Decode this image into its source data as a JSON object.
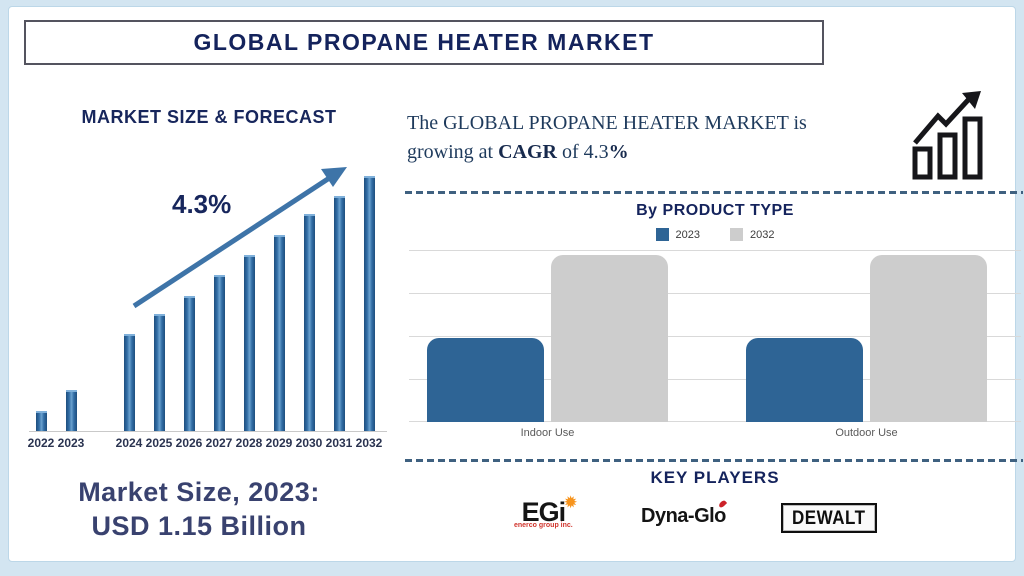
{
  "header": {
    "title": "GLOBAL PROPANE HEATER MARKET"
  },
  "summary": {
    "line1": "The GLOBAL PROPANE HEATER MARKET is",
    "l2_pre": "growing at ",
    "l2_bold1": "CAGR",
    "l2_mid": " of 4.3",
    "l2_bold2": "%"
  },
  "chart_data": [
    {
      "type": "bar",
      "title": "MARKET SIZE & FORECAST",
      "categories": [
        "2022",
        "2023",
        "2024",
        "2025",
        "2026",
        "2027",
        "2028",
        "2029",
        "2030",
        "2031",
        "2032"
      ],
      "values": [
        8,
        16,
        38,
        46,
        53,
        61,
        69,
        77,
        85,
        92,
        100
      ],
      "value_scale": "relative bar height, no numeric axis shown; 2023 known = USD 1.15 Billion",
      "cagr_label": "4.3%",
      "bar_color": "#2e6a9e",
      "xlabel": "",
      "ylabel": "",
      "grid": false,
      "legend_position": "none"
    },
    {
      "type": "bar",
      "title": "By PRODUCT TYPE",
      "categories": [
        "Indoor Use",
        "Outdoor Use"
      ],
      "series": [
        {
          "name": "2023",
          "values": [
            49,
            49
          ],
          "color": "#2e6495"
        },
        {
          "name": "2032",
          "values": [
            97,
            97
          ],
          "color": "#cdcdcd"
        }
      ],
      "ylim": [
        0,
        100
      ],
      "value_scale": "relative bar height vs top gridline = 100, no numeric axis shown",
      "grid": true,
      "legend_position": "top"
    }
  ],
  "key_players": {
    "title": "KEY PLAYERS",
    "players": [
      {
        "name": "EGi",
        "tagline": "enerco group inc."
      },
      {
        "name": "Dyna-Glo"
      },
      {
        "name": "DEWALT"
      }
    ]
  },
  "market_size": {
    "line1": "Market Size, 2023:",
    "line2": "USD 1.15 Billion"
  },
  "icons": {
    "growth_icon": "bar-chart-with-rising-arrow"
  },
  "colors": {
    "navy": "#14235c",
    "bar_blue": "#2e6495",
    "bar_gray": "#cdcdcd",
    "arrow_blue": "#3e74a8",
    "serif_text": "#1e3a5c",
    "dash_line": "#3f6180",
    "egi_orange": "#f7941d",
    "flame_red": "#cc2229",
    "market_size_text": "#39426f"
  }
}
